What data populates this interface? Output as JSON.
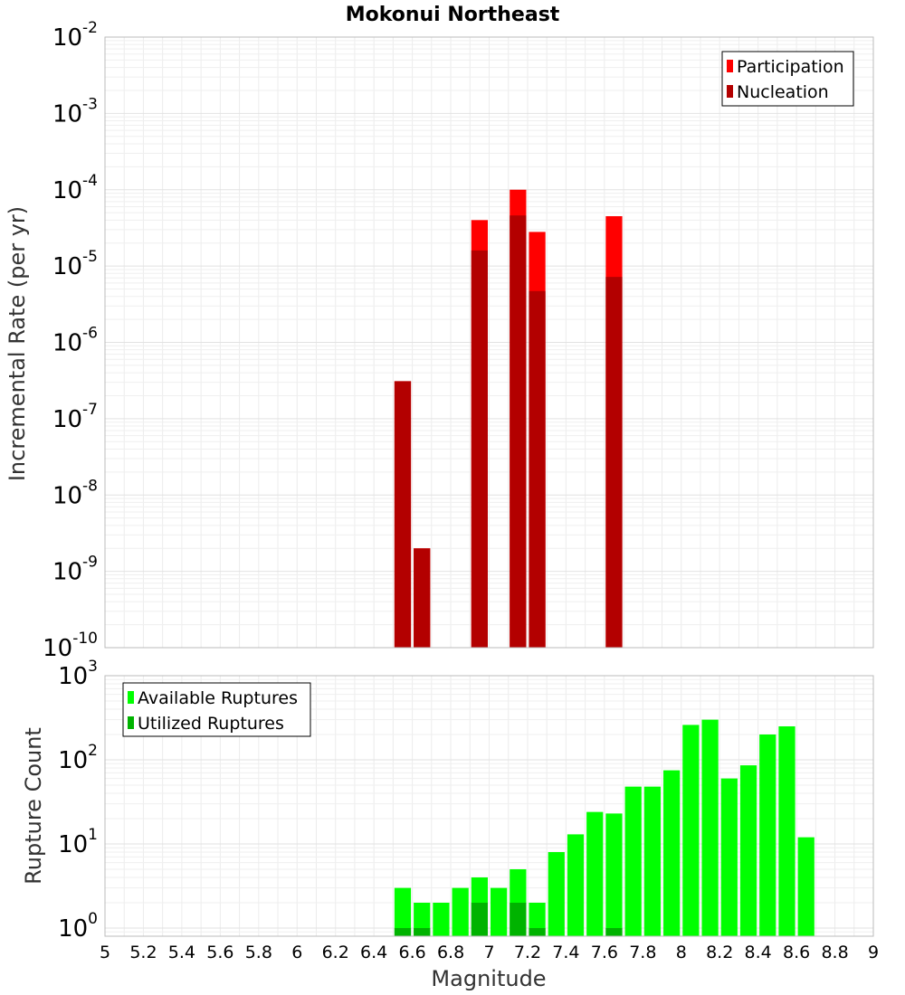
{
  "chart_data": [
    {
      "type": "bar",
      "title": "Mokonui Northeast",
      "xlabel": "",
      "ylabel": "Incremental Rate (per yr)",
      "xlim": [
        5,
        9
      ],
      "ylim": [
        1e-10,
        0.01
      ],
      "yscale": "log",
      "grid": true,
      "legend_position": "top-right",
      "bin_width": 0.1,
      "series": [
        {
          "name": "Participation",
          "color": "#ff0000",
          "x": [
            6.55,
            6.65,
            6.95,
            7.15,
            7.25,
            7.65
          ],
          "values": [
            3.1e-07,
            2e-09,
            4e-05,
            0.0001,
            2.8e-05,
            4.5e-05
          ]
        },
        {
          "name": "Nucleation",
          "color": "#b30000",
          "x": [
            6.55,
            6.65,
            6.95,
            7.15,
            7.25,
            7.65
          ],
          "values": [
            3.1e-07,
            2e-09,
            1.6e-05,
            4.6e-05,
            4.7e-06,
            7.2e-06
          ]
        }
      ]
    },
    {
      "type": "bar",
      "title": "",
      "xlabel": "Magnitude",
      "ylabel": "Rupture Count",
      "xlim": [
        5,
        9
      ],
      "ylim": [
        0.8,
        1000
      ],
      "yscale": "log",
      "grid": true,
      "legend_position": "top-left",
      "bin_width": 0.1,
      "x_ticks": [
        "5",
        "5.2",
        "5.4",
        "5.6",
        "5.8",
        "6",
        "6.2",
        "6.4",
        "6.6",
        "6.8",
        "7",
        "7.2",
        "7.4",
        "7.6",
        "7.8",
        "8",
        "8.2",
        "8.4",
        "8.6",
        "8.8",
        "9"
      ],
      "series": [
        {
          "name": "Available Ruptures",
          "color": "#00ff00",
          "x": [
            6.55,
            6.65,
            6.75,
            6.85,
            6.95,
            7.05,
            7.15,
            7.25,
            7.35,
            7.45,
            7.55,
            7.65,
            7.75,
            7.85,
            7.95,
            8.05,
            8.15,
            8.25,
            8.35,
            8.45,
            8.55,
            8.65
          ],
          "values": [
            3,
            2,
            2,
            3,
            4,
            3,
            5,
            2,
            8,
            13,
            24,
            23,
            48,
            48,
            75,
            260,
            300,
            60,
            86,
            200,
            250,
            12
          ]
        },
        {
          "name": "Utilized Ruptures",
          "color": "#00b300",
          "x": [
            6.55,
            6.65,
            6.95,
            7.15,
            7.25,
            7.65
          ],
          "values": [
            1,
            1,
            2,
            2,
            1,
            1
          ]
        }
      ]
    }
  ]
}
